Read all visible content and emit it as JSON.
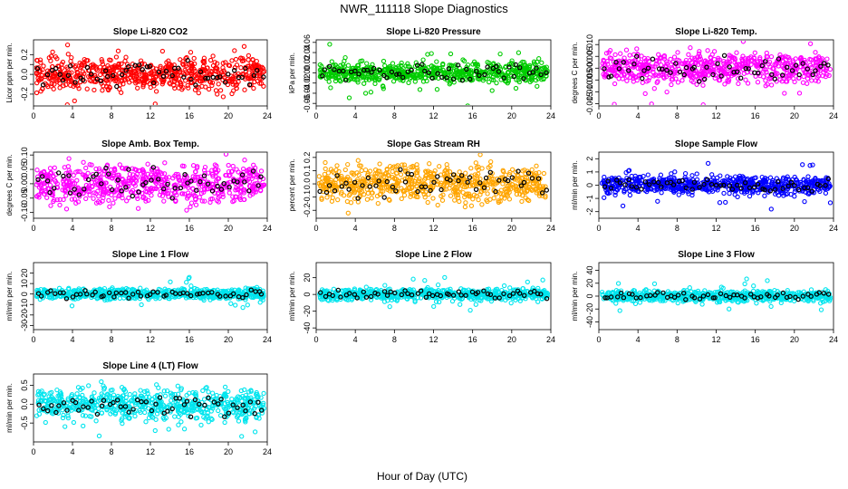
{
  "figure": {
    "title": "NWR_111118  Slope Diagnostics",
    "xlabel": "Hour of Day (UTC)"
  },
  "chart_data": [
    {
      "type": "scatter",
      "title": "Slope Li-820 CO2",
      "ylabel": "Licor ppm per min.",
      "xlim": [
        0,
        24
      ],
      "ylim": [
        -0.32,
        0.35
      ],
      "xticks": [
        0,
        4,
        8,
        12,
        16,
        20,
        24
      ],
      "yticks": [
        -0.2,
        -0.1,
        0.0,
        0.1,
        0.2
      ],
      "yticklabels": [
        "-0.2",
        "",
        "0.0",
        "",
        "0.2"
      ],
      "color": "#ff0000",
      "amplitude": 0.1,
      "highlight_color": "#000000"
    },
    {
      "type": "scatter",
      "title": "Slope Li-820 Pressure",
      "ylabel": "kPa per min.",
      "xlim": [
        0,
        24
      ],
      "ylim": [
        -0.065,
        0.065
      ],
      "xticks": [
        0,
        4,
        8,
        12,
        16,
        20,
        24
      ],
      "yticks": [
        -0.06,
        -0.04,
        -0.02,
        0.0,
        0.02,
        0.04,
        0.06
      ],
      "yticklabels": [
        "-0.06",
        "-0.04",
        "-0.02",
        "0.00",
        "0.02",
        "0.04",
        "0.06"
      ],
      "color": "#00cc00",
      "amplitude": 0.012,
      "highlight_color": "#000000"
    },
    {
      "type": "scatter",
      "title": "Slope Li-820 Temp.",
      "ylabel": "degrees C per min.",
      "xlim": [
        0,
        24
      ],
      "ylim": [
        -0.016,
        0.012
      ],
      "xticks": [
        0,
        4,
        8,
        12,
        16,
        20,
        24
      ],
      "yticks": [
        -0.015,
        -0.01,
        -0.005,
        0.0,
        0.005,
        0.01
      ],
      "yticklabels": [
        "-0.015",
        "-0.010",
        "-0.005",
        "0.000",
        "0.005",
        "0.010"
      ],
      "color": "#ff00ff",
      "amplitude": 0.004,
      "highlight_color": "#000000"
    },
    {
      "type": "scatter",
      "title": "Slope Amb. Box Temp.",
      "ylabel": "degrees C per min.",
      "xlim": [
        0,
        24
      ],
      "ylim": [
        -0.12,
        0.11
      ],
      "xticks": [
        0,
        4,
        8,
        12,
        16,
        20,
        24
      ],
      "yticks": [
        -0.1,
        -0.05,
        0.0,
        0.05,
        0.1
      ],
      "yticklabels": [
        "-0.10",
        "-0.05",
        "0.00",
        "0.05",
        "0.10"
      ],
      "color": "#ff00ff",
      "amplitude": 0.04,
      "highlight_color": "#000000"
    },
    {
      "type": "scatter",
      "title": "Slope Gas Stream RH",
      "ylabel": "percent per min.",
      "xlim": [
        0,
        24
      ],
      "ylim": [
        -0.26,
        0.24
      ],
      "xticks": [
        0,
        4,
        8,
        12,
        16,
        20,
        24
      ],
      "yticks": [
        -0.2,
        -0.1,
        0.0,
        0.1,
        0.2
      ],
      "yticklabels": [
        "-0.2",
        "-0.1",
        "0.0",
        "0.1",
        "0.2"
      ],
      "color": "#ffa500",
      "amplitude": 0.08,
      "highlight_color": "#000000"
    },
    {
      "type": "scatter",
      "title": "Slope Sample Flow",
      "ylabel": "ml/min per min.",
      "xlim": [
        0,
        24
      ],
      "ylim": [
        -2.5,
        2.5
      ],
      "xticks": [
        0,
        4,
        8,
        12,
        16,
        20,
        24
      ],
      "yticks": [
        -2,
        -1,
        0,
        1,
        2
      ],
      "yticklabels": [
        "-2",
        "-1",
        "0",
        "1",
        "2"
      ],
      "color": "#0000ff",
      "amplitude": 0.4,
      "highlight_color": "#000000"
    },
    {
      "type": "scatter",
      "title": "Slope Line 1 Flow",
      "ylabel": "ml/min per min.",
      "xlim": [
        0,
        24
      ],
      "ylim": [
        -34,
        30
      ],
      "xticks": [
        0,
        4,
        8,
        12,
        16,
        20,
        24
      ],
      "yticks": [
        -30,
        -20,
        -10,
        0,
        10,
        20
      ],
      "yticklabels": [
        "-30",
        "-20",
        "-10",
        "0",
        "10",
        "20"
      ],
      "color": "#00e5ee",
      "amplitude": 3,
      "highlight_color": "#000000"
    },
    {
      "type": "scatter",
      "title": "Slope Line 2 Flow",
      "ylabel": "ml/min per min.",
      "xlim": [
        0,
        24
      ],
      "ylim": [
        -42,
        38
      ],
      "xticks": [
        0,
        4,
        8,
        12,
        16,
        20,
        24
      ],
      "yticks": [
        -40,
        -20,
        0,
        20
      ],
      "yticklabels": [
        "-40",
        "-20",
        "0",
        "20"
      ],
      "color": "#00e5ee",
      "amplitude": 4,
      "highlight_color": "#000000"
    },
    {
      "type": "scatter",
      "title": "Slope Line 3 Flow",
      "ylabel": "ml/min per min.",
      "xlim": [
        0,
        24
      ],
      "ylim": [
        -52,
        52
      ],
      "xticks": [
        0,
        4,
        8,
        12,
        16,
        20,
        24
      ],
      "yticks": [
        -40,
        -20,
        0,
        20,
        40
      ],
      "yticklabels": [
        "-40",
        "-20",
        "0",
        "20",
        "40"
      ],
      "color": "#00e5ee",
      "amplitude": 5,
      "highlight_color": "#000000"
    },
    {
      "type": "scatter",
      "title": "Slope Line 4 (LT) Flow",
      "ylabel": "ml/min per min.",
      "xlim": [
        0,
        24
      ],
      "ylim": [
        -1.0,
        0.8
      ],
      "xticks": [
        0,
        4,
        8,
        12,
        16,
        20,
        24
      ],
      "yticks": [
        -0.5,
        0.0,
        0.5
      ],
      "yticklabels": [
        "-0.5",
        "0.0",
        "0.5"
      ],
      "color": "#00e5ee",
      "amplitude": 0.25,
      "highlight_color": "#000000"
    }
  ]
}
